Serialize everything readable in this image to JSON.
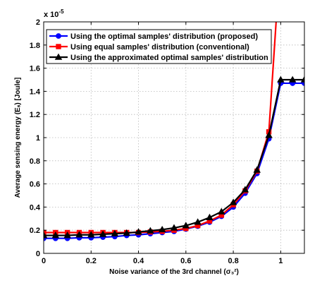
{
  "chart_data": {
    "type": "line",
    "title": "",
    "xlabel": "Noise variance of the 3rd channel (σ₃²)",
    "ylabel": "Average sensing energy (Eₛ) [Joule]",
    "y_exponent_label": "x 10",
    "y_exponent_power": "-5",
    "xlim": [
      0,
      1.1
    ],
    "ylim": [
      0,
      2
    ],
    "xticks": [
      0,
      0.2,
      0.4,
      0.6,
      0.8,
      1
    ],
    "xtick_labels": [
      "0",
      "0.2",
      "0.4",
      "0.6",
      "0.8",
      "1"
    ],
    "yticks": [
      0,
      0.2,
      0.4,
      0.6,
      0.8,
      1,
      1.2,
      1.4,
      1.6,
      1.8,
      2
    ],
    "ytick_labels": [
      "0",
      "0.2",
      "0.4",
      "0.6",
      "0.8",
      "1",
      "1.2",
      "1.4",
      "1.6",
      "1.8",
      "2"
    ],
    "grid": true,
    "legend_position": "top-left",
    "series": [
      {
        "name": "Using the optimal samples' distribution (proposed)",
        "color": "#0000ff",
        "marker": "circle",
        "x": [
          0,
          0.05,
          0.1,
          0.15,
          0.2,
          0.25,
          0.3,
          0.35,
          0.4,
          0.45,
          0.5,
          0.55,
          0.6,
          0.65,
          0.7,
          0.75,
          0.8,
          0.85,
          0.9,
          0.95,
          1.0,
          1.05,
          1.1
        ],
        "y": [
          0.13,
          0.13,
          0.13,
          0.135,
          0.135,
          0.14,
          0.145,
          0.155,
          0.16,
          0.17,
          0.18,
          0.19,
          0.21,
          0.235,
          0.27,
          0.32,
          0.4,
          0.52,
          0.69,
          0.99,
          1.47,
          1.47,
          1.47
        ]
      },
      {
        "name": "Using equal samples' distribution (conventional)",
        "color": "#ff0000",
        "marker": "square",
        "x": [
          0,
          0.05,
          0.1,
          0.15,
          0.2,
          0.25,
          0.3,
          0.35,
          0.4,
          0.45,
          0.5,
          0.55,
          0.6,
          0.65,
          0.7,
          0.75,
          0.8,
          0.85,
          0.9,
          0.95,
          1.0
        ],
        "y": [
          0.18,
          0.18,
          0.18,
          0.18,
          0.18,
          0.18,
          0.18,
          0.18,
          0.18,
          0.185,
          0.19,
          0.2,
          0.215,
          0.24,
          0.28,
          0.33,
          0.42,
          0.54,
          0.71,
          1.05,
          2.6
        ]
      },
      {
        "name": "Using the approximated optimal samples' distribution",
        "color": "#000000",
        "marker": "triangle",
        "x": [
          0,
          0.05,
          0.1,
          0.15,
          0.2,
          0.25,
          0.3,
          0.35,
          0.4,
          0.45,
          0.5,
          0.55,
          0.6,
          0.65,
          0.7,
          0.75,
          0.8,
          0.85,
          0.9,
          0.95,
          1.0,
          1.05,
          1.1
        ],
        "y": [
          0.155,
          0.155,
          0.155,
          0.16,
          0.16,
          0.165,
          0.17,
          0.175,
          0.185,
          0.195,
          0.205,
          0.22,
          0.24,
          0.27,
          0.31,
          0.36,
          0.44,
          0.55,
          0.72,
          1.02,
          1.5,
          1.5,
          1.5
        ]
      }
    ]
  }
}
